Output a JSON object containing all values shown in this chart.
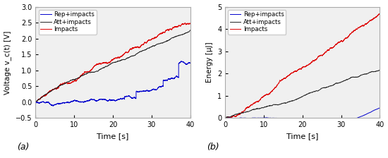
{
  "left": {
    "xlabel": "Time [s]",
    "ylabel": "Voltage v_c(t) [V]",
    "xlim": [
      0,
      40
    ],
    "ylim": [
      -0.5,
      3.0
    ],
    "yticks": [
      -0.5,
      0.0,
      0.5,
      1.0,
      1.5,
      2.0,
      2.5,
      3.0
    ],
    "xticks": [
      0,
      10,
      20,
      30,
      40
    ],
    "label_a": "(a)",
    "legend": [
      "Rep+impacts",
      "Att+impacts",
      "Impacts"
    ],
    "line_colors": [
      "#0000cd",
      "#222222",
      "#dd0000"
    ],
    "bg_color": "#f0f0f0"
  },
  "right": {
    "xlabel": "Time [s]",
    "ylabel": "Energy [μJ]",
    "xlim": [
      0,
      40
    ],
    "ylim": [
      0,
      5
    ],
    "yticks": [
      0,
      1,
      2,
      3,
      4,
      5
    ],
    "xticks": [
      0,
      10,
      20,
      30,
      40
    ],
    "label_b": "(b)",
    "legend": [
      "Rep+impacts",
      "Att+impacts",
      "Impacts"
    ],
    "line_colors": [
      "#0000cd",
      "#222222",
      "#dd0000"
    ],
    "bg_color": "#f0f0f0"
  }
}
